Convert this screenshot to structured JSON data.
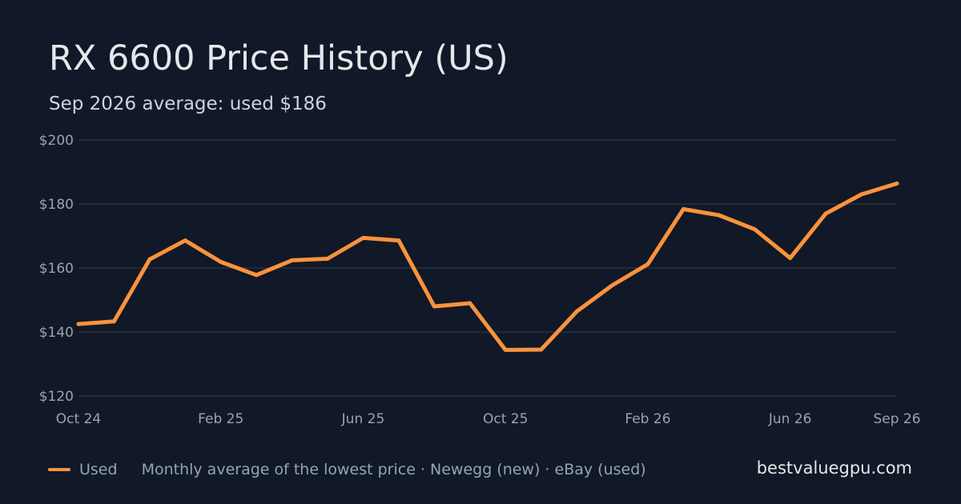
{
  "chart_data": {
    "type": "line",
    "title": "RX 6600 Price History (US)",
    "subtitle": "Sep 2026 average: used $186",
    "x": [
      "Oct 24",
      "Nov 24",
      "Dec 24",
      "Jan 25",
      "Feb 25",
      "Mar 25",
      "Apr 25",
      "May 25",
      "Jun 25",
      "Jul 25",
      "Aug 25",
      "Sep 25",
      "Oct 25",
      "Nov 25",
      "Dec 25",
      "Jan 26",
      "Feb 26",
      "Mar 26",
      "Apr 26",
      "May 26",
      "Jun 26",
      "Jul 26",
      "Aug 26",
      "Sep 26"
    ],
    "x_tick_labels": [
      "Oct 24",
      "Feb 25",
      "Jun 25",
      "Oct 25",
      "Feb 26",
      "Jun 26",
      "Sep 26"
    ],
    "series": [
      {
        "name": "Used",
        "color": "#fb923c",
        "values": [
          142.5,
          143.3,
          162.7,
          168.6,
          161.9,
          157.8,
          162.4,
          162.9,
          169.4,
          168.6,
          148.0,
          149.0,
          134.4,
          134.5,
          146.4,
          154.6,
          161.2,
          178.4,
          176.5,
          172.1,
          163.1,
          177.0,
          183.0,
          186.4
        ]
      }
    ],
    "ylim": [
      120,
      200
    ],
    "y_ticks": [
      120,
      140,
      160,
      180,
      200
    ],
    "y_tick_prefix": "$",
    "xlabel": "",
    "ylabel": "",
    "grid": true,
    "gridColor": "#253044"
  },
  "footer": {
    "legend_label": "Used",
    "note": "Monthly average of the lowest price · Newegg (new) · eBay (used)",
    "brand": "bestvaluegpu.com"
  }
}
